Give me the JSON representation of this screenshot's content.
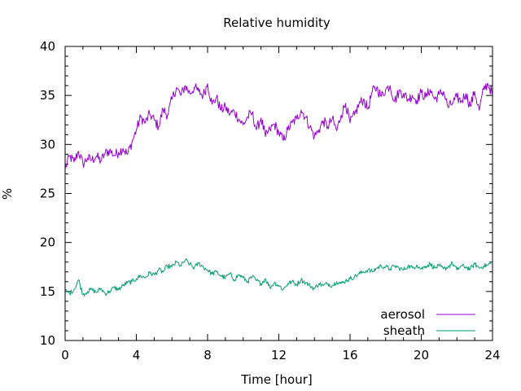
{
  "chart_data": {
    "type": "line",
    "title": "Relative humidity",
    "xlabel": "Time [hour]",
    "ylabel": "%",
    "xlim": [
      0,
      24
    ],
    "ylim": [
      10,
      40
    ],
    "x_ticks": [
      0,
      4,
      8,
      12,
      16,
      20,
      24
    ],
    "y_ticks": [
      10,
      15,
      20,
      25,
      30,
      35,
      40
    ],
    "x_tick_labels": [
      "0",
      "4",
      "8",
      "12",
      "16",
      "20",
      "24"
    ],
    "y_tick_labels": [
      "10",
      "15",
      "20",
      "25",
      "30",
      "35",
      "40"
    ],
    "x_minor_step": 1,
    "y_minor_step": 1,
    "grid": false,
    "legend_position": "bottom-right",
    "series": [
      {
        "name": "aerosol",
        "color": "#9400d3",
        "x": [
          0,
          0.25,
          0.5,
          0.75,
          1,
          1.25,
          1.5,
          1.75,
          2,
          2.25,
          2.5,
          2.75,
          3,
          3.25,
          3.5,
          3.75,
          4,
          4.25,
          4.5,
          4.75,
          5,
          5.25,
          5.5,
          5.75,
          6,
          6.25,
          6.5,
          6.75,
          7,
          7.25,
          7.5,
          7.75,
          8,
          8.25,
          8.5,
          8.75,
          9,
          9.25,
          9.5,
          9.75,
          10,
          10.25,
          10.5,
          10.75,
          11,
          11.25,
          11.5,
          11.75,
          12,
          12.25,
          12.5,
          12.75,
          13,
          13.25,
          13.5,
          13.75,
          14,
          14.25,
          14.5,
          14.75,
          15,
          15.25,
          15.5,
          15.75,
          16,
          16.25,
          16.5,
          16.75,
          17,
          17.25,
          17.5,
          17.75,
          18,
          18.25,
          18.5,
          18.75,
          19,
          19.25,
          19.5,
          19.75,
          20,
          20.25,
          20.5,
          20.75,
          21,
          21.25,
          21.5,
          21.75,
          22,
          22.25,
          22.5,
          22.75,
          23,
          23.25,
          23.5,
          23.75,
          24
        ],
        "y": [
          27.5,
          28.8,
          28.2,
          29.3,
          28.0,
          28.6,
          28.4,
          28.8,
          28.3,
          29.1,
          29.4,
          28.9,
          29.2,
          29.6,
          29.0,
          30.2,
          31.5,
          32.8,
          32.2,
          33.1,
          32.5,
          31.8,
          33.6,
          33.0,
          34.6,
          35.8,
          35.0,
          36.0,
          35.2,
          35.8,
          35.4,
          35.0,
          36.2,
          34.1,
          34.8,
          33.5,
          33.8,
          33.1,
          33.4,
          32.6,
          32.0,
          32.8,
          33.2,
          31.5,
          32.7,
          30.8,
          31.5,
          32.1,
          31.2,
          30.4,
          31.5,
          32.2,
          32.6,
          33.5,
          32.8,
          31.8,
          30.8,
          31.5,
          32.4,
          31.8,
          32.6,
          31.4,
          33.0,
          34.2,
          32.2,
          33.0,
          34.1,
          34.6,
          33.6,
          35.4,
          35.8,
          34.9,
          35.6,
          36.0,
          34.4,
          35.4,
          35.2,
          34.6,
          35.0,
          34.5,
          35.3,
          34.8,
          35.6,
          34.6,
          35.1,
          35.4,
          33.8,
          34.2,
          34.8,
          34.4,
          35.2,
          33.9,
          35.4,
          33.5,
          35.6,
          36.2,
          35.1
        ]
      },
      {
        "name": "sheath",
        "color": "#009e73",
        "x": [
          0,
          0.25,
          0.5,
          0.75,
          1,
          1.25,
          1.5,
          1.75,
          2,
          2.25,
          2.5,
          2.75,
          3,
          3.25,
          3.5,
          3.75,
          4,
          4.25,
          4.5,
          4.75,
          5,
          5.25,
          5.5,
          5.75,
          6,
          6.25,
          6.5,
          6.75,
          7,
          7.25,
          7.5,
          7.75,
          8,
          8.25,
          8.5,
          8.75,
          9,
          9.25,
          9.5,
          9.75,
          10,
          10.25,
          10.5,
          10.75,
          11,
          11.25,
          11.5,
          11.75,
          12,
          12.25,
          12.5,
          12.75,
          13,
          13.25,
          13.5,
          13.75,
          14,
          14.25,
          14.5,
          14.75,
          15,
          15.25,
          15.5,
          15.75,
          16,
          16.25,
          16.5,
          16.75,
          17,
          17.25,
          17.5,
          17.75,
          18,
          18.25,
          18.5,
          18.75,
          19,
          19.25,
          19.5,
          19.75,
          20,
          20.25,
          20.5,
          20.75,
          21,
          21.25,
          21.5,
          21.75,
          22,
          22.25,
          22.5,
          22.75,
          23,
          23.25,
          23.5,
          23.75,
          24
        ],
        "y": [
          15.1,
          14.8,
          15.2,
          16.2,
          14.7,
          15.0,
          15.2,
          14.9,
          15.3,
          14.8,
          15.0,
          15.4,
          15.2,
          15.6,
          15.9,
          16.0,
          16.3,
          16.6,
          16.4,
          16.9,
          16.7,
          17.2,
          17.0,
          17.6,
          17.5,
          18.0,
          17.6,
          18.2,
          17.8,
          17.4,
          17.9,
          17.5,
          17.2,
          16.8,
          17.0,
          16.6,
          16.4,
          16.8,
          16.2,
          16.7,
          16.4,
          16.0,
          16.5,
          16.1,
          15.8,
          16.3,
          15.4,
          15.9,
          15.6,
          15.2,
          15.8,
          16.0,
          15.7,
          16.2,
          15.9,
          15.6,
          15.3,
          15.8,
          15.6,
          15.8,
          15.6,
          16.0,
          15.8,
          16.1,
          16.3,
          16.5,
          16.8,
          17.0,
          17.2,
          17.0,
          17.4,
          17.6,
          17.5,
          17.3,
          17.6,
          17.4,
          17.2,
          17.6,
          17.4,
          17.7,
          17.3,
          17.6,
          17.8,
          17.4,
          17.6,
          17.3,
          17.5,
          17.9,
          17.2,
          17.6,
          17.5,
          17.3,
          17.8,
          17.4,
          17.6,
          17.7,
          18.0
        ]
      }
    ]
  }
}
